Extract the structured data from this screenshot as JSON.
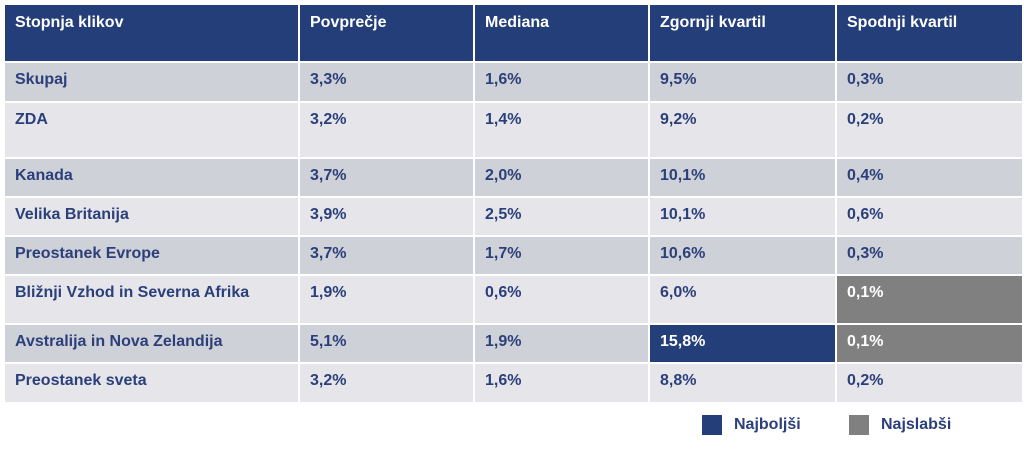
{
  "chart_data": {
    "type": "table",
    "columns": [
      "Stopnja klikov",
      "Povprečje",
      "Mediana",
      "Zgornji kvartil",
      "Spodnji kvartil"
    ],
    "rows": [
      {
        "region": "Skupaj",
        "values": [
          "3,3%",
          "1,6%",
          "9,5%",
          "0,3%"
        ]
      },
      {
        "region": "ZDA",
        "values": [
          "3,2%",
          "1,4%",
          "9,2%",
          "0,2%"
        ]
      },
      {
        "region": "Kanada",
        "values": [
          "3,7%",
          "2,0%",
          "10,1%",
          "0,4%"
        ]
      },
      {
        "region": "Velika Britanija",
        "values": [
          "3,9%",
          "2,5%",
          "10,1%",
          "0,6%"
        ]
      },
      {
        "region": "Preostanek Evrope",
        "values": [
          "3,7%",
          "1,7%",
          "10,6%",
          "0,3%"
        ]
      },
      {
        "region": "Bližnji Vzhod in Severna Afrika",
        "values": [
          "1,9%",
          "0,6%",
          "6,0%",
          "0,1%"
        ]
      },
      {
        "region": "Avstralija in Nova Zelandija",
        "values": [
          "5,1%",
          "1,9%",
          "15,8%",
          "0,1%"
        ]
      },
      {
        "region": "Preostanek sveta",
        "values": [
          "3,2%",
          "1,6%",
          "8,8%",
          "0,2%"
        ]
      }
    ],
    "highlights": [
      {
        "row": 6,
        "col": 3,
        "kind": "best"
      },
      {
        "row": 5,
        "col": 4,
        "kind": "worst"
      },
      {
        "row": 6,
        "col": 4,
        "kind": "worst"
      }
    ],
    "legend": [
      {
        "kind": "best",
        "label": "Najboljši",
        "color": "#233e79"
      },
      {
        "kind": "worst",
        "label": "Najslabši",
        "color": "#808080"
      }
    ]
  },
  "colors": {
    "header_bg": "#233e79",
    "row_dark": "#cfd1d8",
    "row_light": "#e6e6ea",
    "text": "#2b3f7a"
  }
}
